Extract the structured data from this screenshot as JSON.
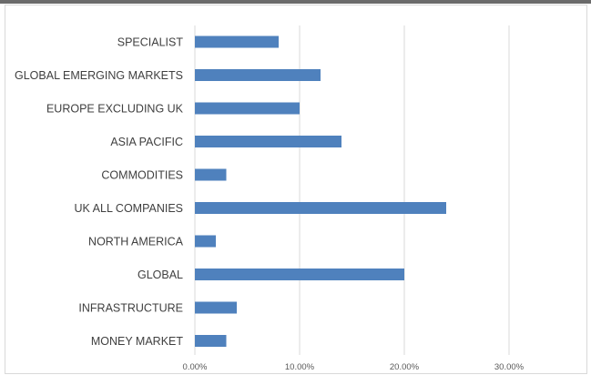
{
  "chart_data": {
    "type": "bar",
    "orientation": "horizontal",
    "title": "",
    "xlabel": "",
    "ylabel": "",
    "categories": [
      "SPECIALIST",
      "GLOBAL EMERGING MARKETS",
      "EUROPE EXCLUDING UK",
      "ASIA PACIFIC",
      "COMMODITIES",
      "UK ALL COMPANIES",
      "NORTH AMERICA",
      "GLOBAL",
      "INFRASTRUCTURE",
      "MONEY MARKET"
    ],
    "values": [
      0.08,
      0.12,
      0.1,
      0.14,
      0.03,
      0.24,
      0.02,
      0.2,
      0.04,
      0.03
    ],
    "xlim": [
      0,
      0.35
    ],
    "x_ticks": [
      0,
      0.1,
      0.2,
      0.3
    ],
    "x_tick_labels": [
      "0.00%",
      "10.00%",
      "20.00%",
      "30.00%"
    ],
    "grid": "vertical",
    "legend": "none",
    "bar_color": "#4F81BD",
    "grid_color": "#d9d9d9"
  }
}
